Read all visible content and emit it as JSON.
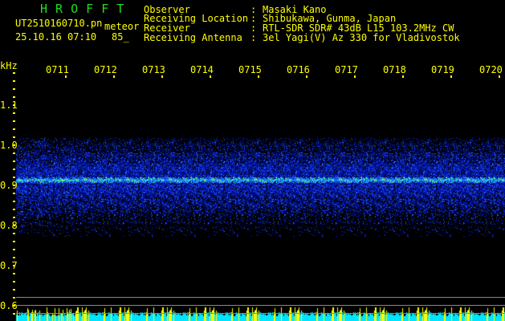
{
  "header": {
    "app": "H R O F F T",
    "filename": "UT2510160710.pn",
    "mode": "meteor",
    "datetime": "25.10.16 07:10",
    "level": "85_",
    "fields": [
      {
        "label": "Observer",
        "value": "Masaki Kano"
      },
      {
        "label": "Receiving Location",
        "value": "Shibukawa, Gunma, Japan"
      },
      {
        "label": "Receiver",
        "value": "RTL-SDR SDR# 43dB L15 103.2MHz CW"
      },
      {
        "label": "Receiving Antenna",
        "value": "3el Yagi(V) Az 330 for Vladivostok"
      }
    ]
  },
  "axis": {
    "unit": "kHz",
    "time_labels": [
      "0711",
      "0712",
      "0713",
      "0714",
      "0715",
      "0716",
      "0717",
      "0718",
      "0719",
      "0720"
    ],
    "freq_labels": [
      "1.1",
      "1.0",
      "0.9",
      "0.8",
      "0.7",
      "0.6"
    ]
  },
  "colors": {
    "text": "#ffff00",
    "title": "#22dd22",
    "signal": "#00e5ff",
    "noise": "#1020c0"
  }
}
